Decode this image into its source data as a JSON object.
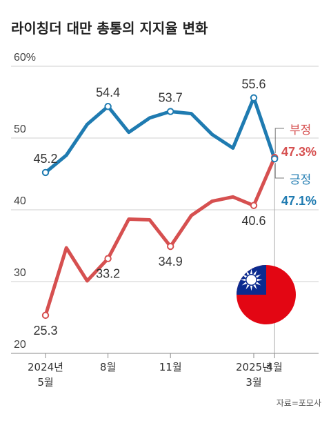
{
  "chart_data": {
    "type": "line",
    "title": "라이칭더 대만 총통의 지지율 변화",
    "ylim": [
      20,
      60
    ],
    "y_ticks": [
      "20",
      "30",
      "40",
      "50",
      "60%"
    ],
    "x_tick_labels": [
      {
        "index": 0,
        "lines": [
          "2024년",
          "5월"
        ]
      },
      {
        "index": 3,
        "lines": [
          "8월"
        ]
      },
      {
        "index": 6,
        "lines": [
          "11월"
        ]
      },
      {
        "index": 10,
        "lines": [
          "2025년",
          "3월"
        ]
      },
      {
        "index": 11,
        "lines": [
          "4월"
        ]
      }
    ],
    "grid": true,
    "series": [
      {
        "name": "긍정",
        "color": "#1f7bb1",
        "values": [
          45.2,
          47.6,
          51.9,
          54.4,
          50.8,
          52.8,
          53.7,
          53.4,
          50.5,
          48.6,
          55.6,
          47.1
        ],
        "end_label": "47.1%"
      },
      {
        "name": "부정",
        "color": "#d65050",
        "values": [
          25.3,
          34.7,
          30.1,
          33.2,
          38.7,
          38.6,
          34.9,
          39.2,
          41.2,
          41.8,
          40.6,
          47.3
        ],
        "end_label": "47.3%"
      }
    ],
    "data_labels": [
      {
        "series": 0,
        "index": 0,
        "text": "45.2"
      },
      {
        "series": 0,
        "index": 3,
        "text": "54.4"
      },
      {
        "series": 0,
        "index": 6,
        "text": "53.7"
      },
      {
        "series": 0,
        "index": 10,
        "text": "55.6"
      },
      {
        "series": 1,
        "index": 0,
        "text": "25.3"
      },
      {
        "series": 1,
        "index": 3,
        "text": "33.2"
      },
      {
        "series": 1,
        "index": 6,
        "text": "34.9"
      },
      {
        "series": 1,
        "index": 10,
        "text": "40.6"
      }
    ],
    "source": "자료=포모사"
  },
  "flag": {
    "red": "#e30613",
    "blue": "#0b2b8f",
    "white": "#ffffff"
  }
}
